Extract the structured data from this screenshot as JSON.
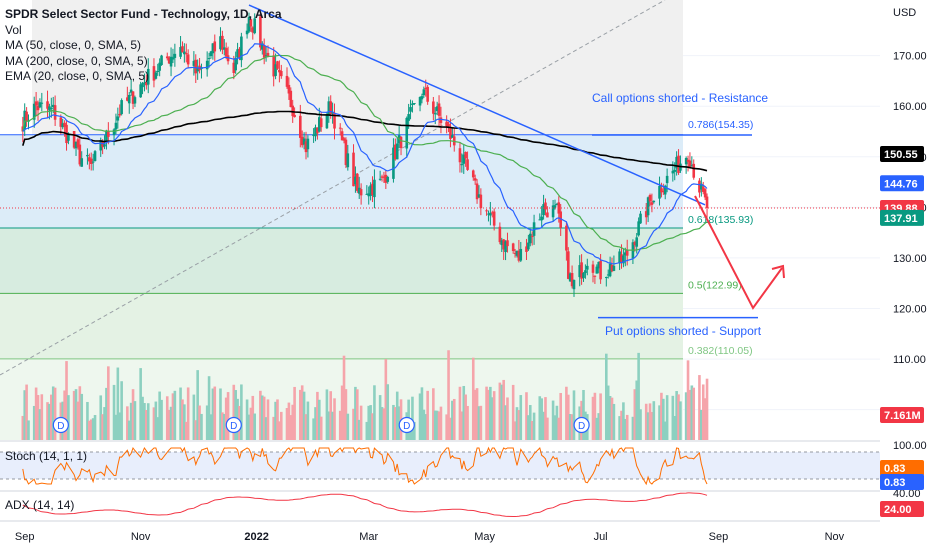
{
  "chart_data": {
    "type": "candlestick",
    "title": "SPDR Select Sector Fund - Technology, 1D, Arca",
    "currency": "USD",
    "legend": [
      {
        "label": "Vol",
        "color": "#131722"
      },
      {
        "label": "MA (50, close, 0, SMA, 5)",
        "color": "#4caf50"
      },
      {
        "label": "MA (200, close, 0, SMA, 5)",
        "color": "#000000"
      },
      {
        "label": "EMA (20, close, 0, SMA, 5)",
        "color": "#2962ff"
      }
    ],
    "price_axis": {
      "range": [
        94,
        181
      ],
      "ticks": [
        100,
        110,
        120,
        130,
        140,
        150,
        160,
        170
      ]
    },
    "time_axis": {
      "labels": [
        "Sep",
        "Nov",
        "2022",
        "Mar",
        "May",
        "Jul",
        "Sep",
        "Nov"
      ],
      "bold": "2022"
    },
    "fib_levels": [
      {
        "ratio": "0.786",
        "price": 154.35,
        "label": "0.786(154.35)",
        "color": "#2962ff"
      },
      {
        "ratio": "0.618",
        "price": 135.93,
        "label": "0.618(135.93)",
        "color": "#089981"
      },
      {
        "ratio": "0.5",
        "price": 122.99,
        "label": "0.5(122.99)",
        "color": "#4caf50"
      },
      {
        "ratio": "0.382",
        "price": 110.05,
        "label": "0.382(110.05)",
        "color": "#81c784"
      }
    ],
    "annotations": [
      {
        "text": "Call options shorted - Resistance",
        "color": "#2962ff"
      },
      {
        "text": "Put options shorted - Support",
        "color": "#2962ff"
      }
    ],
    "price_badges": [
      {
        "value": "150.55",
        "price": 150.55,
        "bg": "#000000",
        "fg": "#ffffff"
      },
      {
        "value": "144.76",
        "price": 144.76,
        "bg": "#2962ff",
        "fg": "#ffffff"
      },
      {
        "value": "139.88",
        "price": 139.88,
        "bg": "#f23645",
        "fg": "#ffffff"
      },
      {
        "value": "137.91",
        "price": 137.91,
        "bg": "#089981",
        "fg": "#ffffff"
      },
      {
        "value": "7.161M",
        "bg": "#f23645",
        "fg": "#ffffff"
      }
    ],
    "dividend_marker": "D",
    "stoch": {
      "label": "Stoch (14, 1, 1)",
      "axis_label": "100.00",
      "k": "0.83",
      "d": "0.83"
    },
    "adx": {
      "label": "ADX (14, 14)",
      "value": "24.00",
      "axis_label": "40.00"
    },
    "ohlc_path": [
      {
        "date": "2021-08-31",
        "close": 157
      },
      {
        "date": "2021-09-07",
        "close": 160
      },
      {
        "date": "2021-09-16",
        "close": 159
      },
      {
        "date": "2021-09-30",
        "close": 150
      },
      {
        "date": "2021-10-06",
        "close": 148
      },
      {
        "date": "2021-10-21",
        "close": 159
      },
      {
        "date": "2021-11-03",
        "close": 165
      },
      {
        "date": "2021-11-22",
        "close": 172
      },
      {
        "date": "2021-12-01",
        "close": 166
      },
      {
        "date": "2021-12-13",
        "close": 173
      },
      {
        "date": "2021-12-20",
        "close": 167
      },
      {
        "date": "2021-12-28",
        "close": 178
      },
      {
        "date": "2022-01-05",
        "close": 171
      },
      {
        "date": "2022-01-20",
        "close": 160
      },
      {
        "date": "2022-01-27",
        "close": 152
      },
      {
        "date": "2022-02-09",
        "close": 160
      },
      {
        "date": "2022-02-23",
        "close": 143
      },
      {
        "date": "2022-03-08",
        "close": 145
      },
      {
        "date": "2022-03-29",
        "close": 163
      },
      {
        "date": "2022-04-12",
        "close": 155
      },
      {
        "date": "2022-04-28",
        "close": 142
      },
      {
        "date": "2022-05-11",
        "close": 133
      },
      {
        "date": "2022-05-19",
        "close": 130
      },
      {
        "date": "2022-06-01",
        "close": 140
      },
      {
        "date": "2022-06-08",
        "close": 139
      },
      {
        "date": "2022-06-16",
        "close": 124
      },
      {
        "date": "2022-06-24",
        "close": 130
      },
      {
        "date": "2022-07-01",
        "close": 127
      },
      {
        "date": "2022-07-14",
        "close": 130
      },
      {
        "date": "2022-07-28",
        "close": 142
      },
      {
        "date": "2022-08-08",
        "close": 147
      },
      {
        "date": "2022-08-16",
        "close": 151
      },
      {
        "date": "2022-08-22",
        "close": 144
      },
      {
        "date": "2022-08-26",
        "close": 139.88
      }
    ]
  }
}
